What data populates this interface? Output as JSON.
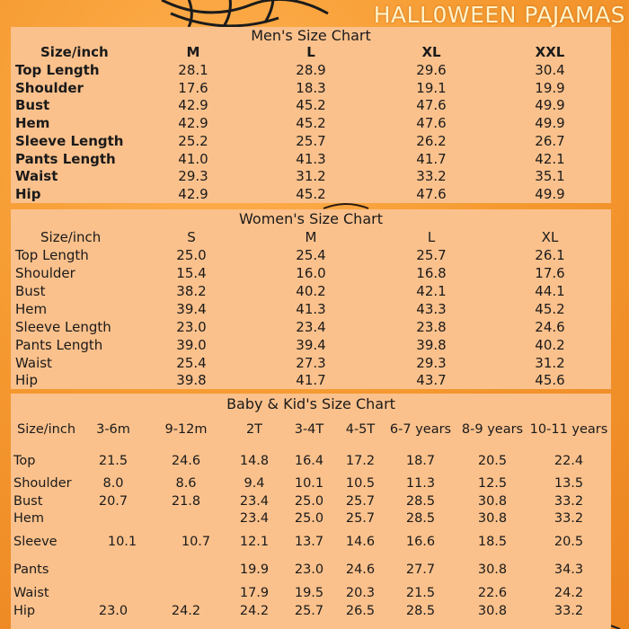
{
  "brand": "HALL0WEEN PAJAMAS",
  "men": {
    "title": "Men's Size Chart",
    "headers": [
      "Size/inch",
      "M",
      "L",
      "XL",
      "XXL"
    ],
    "rows": [
      {
        "label": "Top Length",
        "values": [
          "28.1",
          "28.9",
          "29.6",
          "30.4"
        ]
      },
      {
        "label": "Shoulder",
        "values": [
          "17.6",
          "18.3",
          "19.1",
          "19.9"
        ]
      },
      {
        "label": "Bust",
        "values": [
          "42.9",
          "45.2",
          "47.6",
          "49.9"
        ]
      },
      {
        "label": "Hem",
        "values": [
          "42.9",
          "45.2",
          "47.6",
          "49.9"
        ]
      },
      {
        "label": "Sleeve Length",
        "values": [
          "25.2",
          "25.7",
          "26.2",
          "26.7"
        ]
      },
      {
        "label": "Pants Length",
        "values": [
          "41.0",
          "41.3",
          "41.7",
          "42.1"
        ]
      },
      {
        "label": "Waist",
        "values": [
          "29.3",
          "31.2",
          "33.2",
          "35.1"
        ]
      },
      {
        "label": "Hip",
        "values": [
          "42.9",
          "45.2",
          "47.6",
          "49.9"
        ]
      }
    ]
  },
  "women": {
    "title": "Women's Size Chart",
    "headers": [
      "Size/inch",
      "S",
      "M",
      "L",
      "XL"
    ],
    "rows": [
      {
        "label": "Top Length",
        "values": [
          "25.0",
          "25.4",
          "25.7",
          "26.1"
        ]
      },
      {
        "label": "Shoulder",
        "values": [
          "15.4",
          "16.0",
          "16.8",
          "17.6"
        ]
      },
      {
        "label": "Bust",
        "values": [
          "38.2",
          "40.2",
          "42.1",
          "44.1"
        ]
      },
      {
        "label": "Hem",
        "values": [
          "39.4",
          "41.3",
          "43.3",
          "45.2"
        ]
      },
      {
        "label": "Sleeve Length",
        "values": [
          "23.0",
          "23.4",
          "23.8",
          "24.6"
        ]
      },
      {
        "label": "Pants Length",
        "values": [
          "39.0",
          "39.4",
          "39.8",
          "40.2"
        ]
      },
      {
        "label": "Waist",
        "values": [
          "25.4",
          "27.3",
          "29.3",
          "31.2"
        ]
      },
      {
        "label": "Hip",
        "values": [
          "39.8",
          "41.7",
          "43.7",
          "45.6"
        ]
      }
    ]
  },
  "kids": {
    "title": "Baby & Kid's Size Chart",
    "headers": [
      "Size/inch",
      "3-6m",
      "9-12m",
      "2T",
      "3-4T",
      "4-5T",
      "6-7 years",
      "8-9 years",
      "10-11 years"
    ],
    "rows": [
      {
        "label": "Top",
        "values": [
          "21.5",
          "24.6",
          "14.8",
          "16.4",
          "17.2",
          "18.7",
          "20.5",
          "22.4"
        ]
      },
      {
        "label": "Shoulder",
        "values": [
          "8.0",
          "8.6",
          "9.4",
          "10.1",
          "10.5",
          "11.3",
          "12.5",
          "13.5"
        ]
      },
      {
        "label": "Bust",
        "values": [
          "20.7",
          "21.8",
          "23.4",
          "25.0",
          "25.7",
          "28.5",
          "30.8",
          "33.2"
        ]
      },
      {
        "label": "Hem",
        "values": [
          "",
          "",
          "23.4",
          "25.0",
          "25.7",
          "28.5",
          "30.8",
          "33.2"
        ]
      },
      {
        "label": "Sleeve",
        "values": [
          "10.1",
          "10.7",
          "12.1",
          "13.7",
          "14.6",
          "16.6",
          "18.5",
          "20.5"
        ]
      },
      {
        "label": "Pants",
        "values": [
          "",
          "",
          "19.9",
          "23.0",
          "24.6",
          "27.7",
          "30.8",
          "34.3"
        ]
      },
      {
        "label": "Waist",
        "values": [
          "",
          "",
          "17.9",
          "19.5",
          "20.3",
          "21.5",
          "22.6",
          "24.2"
        ]
      },
      {
        "label": "Hip",
        "values": [
          "23.0",
          "24.2",
          "24.2",
          "25.7",
          "26.5",
          "28.5",
          "30.8",
          "33.2"
        ]
      }
    ]
  }
}
